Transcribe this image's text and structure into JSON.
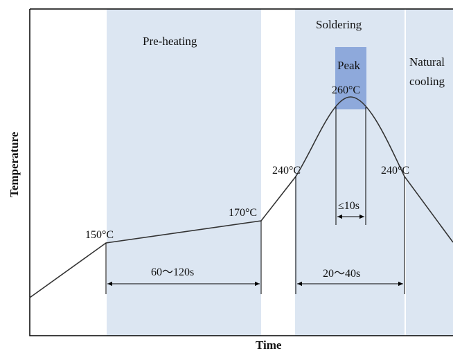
{
  "colors": {
    "zone": "#dce6f2",
    "peak": "#8ea9db",
    "curve": "#333333",
    "frame": "#000000"
  },
  "zones": {
    "preheating": "Pre-heating",
    "soldering": "Soldering",
    "peak": "Peak",
    "cooling_line1": "Natural",
    "cooling_line2": "cooling"
  },
  "axes": {
    "x_label": "Time",
    "y_label": "Temperature"
  },
  "points": {
    "p150": "150°C",
    "p170": "170°C",
    "p240_rise": "240°C",
    "p260": "260°C",
    "p240_fall": "240°C"
  },
  "durations": {
    "preheat": "60～120s",
    "soldering": "20～40s",
    "peak": "≤10s"
  }
}
